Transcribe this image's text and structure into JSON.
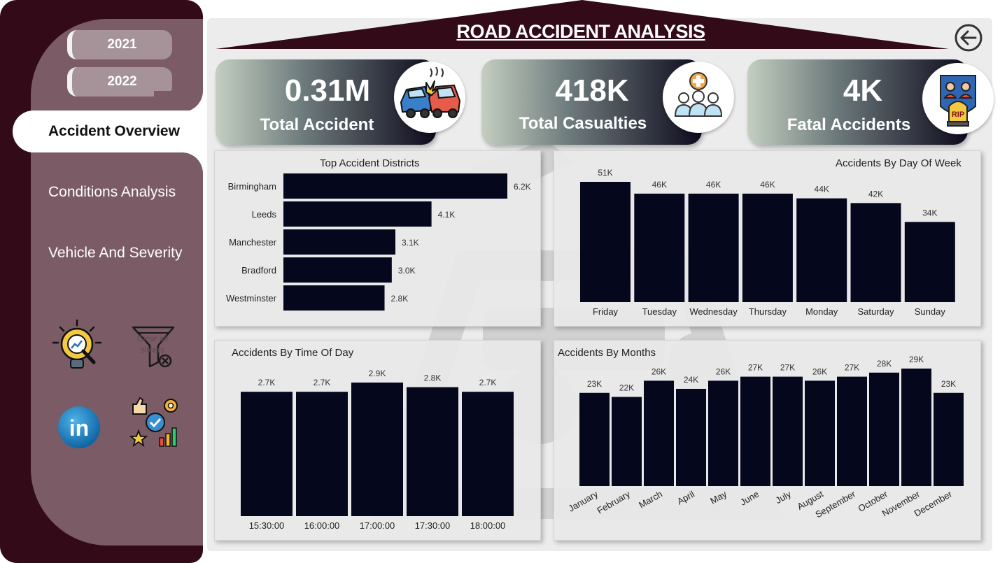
{
  "title": "ROAD ACCIDENT ANALYSIS",
  "sidebar": {
    "years": [
      "2021",
      "2022"
    ],
    "nav": {
      "active": "Accident Overview",
      "items": [
        "Conditions Analysis",
        "Vehicle And Severity"
      ]
    },
    "icons": {
      "insight": "idea-chart-icon",
      "clear": "filter-clear-icon",
      "clear_text": "Clear all slicers",
      "linkedin": "linkedin-icon",
      "performance": "performance-icon"
    }
  },
  "back_icon": "back-arrow-icon",
  "kpis": [
    {
      "value": "0.31M",
      "label": "Total Accident",
      "icon": "car-crash-icon"
    },
    {
      "value": "418K",
      "label": "Total Casualties",
      "icon": "people-medical-icon"
    },
    {
      "value": "4K",
      "label": "Fatal Accidents",
      "icon": "rip-tombstone-icon"
    }
  ],
  "colors": {
    "sidebar_dark": "#330b18",
    "sidebar_mid": "#7b5b66",
    "bar": "#05071d"
  },
  "chart_data": [
    {
      "id": "districts",
      "type": "bar",
      "orientation": "horizontal",
      "title": "Top Accident Districts",
      "categories": [
        "Birmingham",
        "Leeds",
        "Manchester",
        "Bradford",
        "Westminster"
      ],
      "values": [
        6200,
        4100,
        3100,
        3000,
        2800
      ],
      "labels": [
        "6.2K",
        "4.1K",
        "3.1K",
        "3.0K",
        "2.8K"
      ]
    },
    {
      "id": "dayofweek",
      "type": "bar",
      "title": "Accidents By Day Of Week",
      "categories": [
        "Friday",
        "Tuesday",
        "Wednesday",
        "Thursday",
        "Monday",
        "Saturday",
        "Sunday"
      ],
      "values": [
        51000,
        46000,
        46000,
        46000,
        44000,
        42000,
        34000
      ],
      "labels": [
        "51K",
        "46K",
        "46K",
        "46K",
        "44K",
        "42K",
        "34K"
      ]
    },
    {
      "id": "timeofday",
      "type": "bar",
      "title": "Accidents By Time Of Day",
      "categories": [
        "15:30:00",
        "16:00:00",
        "17:00:00",
        "17:30:00",
        "18:00:00"
      ],
      "values": [
        2700,
        2700,
        2900,
        2800,
        2700
      ],
      "labels": [
        "2.7K",
        "2.7K",
        "2.9K",
        "2.8K",
        "2.7K"
      ]
    },
    {
      "id": "months",
      "type": "bar",
      "title": "Accidents By Months",
      "categories": [
        "January",
        "February",
        "March",
        "April",
        "May",
        "June",
        "July",
        "August",
        "September",
        "October",
        "November",
        "December"
      ],
      "values": [
        23000,
        22000,
        26000,
        24000,
        26000,
        27000,
        27000,
        26000,
        27000,
        28000,
        29000,
        23000
      ],
      "labels": [
        "23K",
        "22K",
        "26K",
        "24K",
        "26K",
        "27K",
        "27K",
        "26K",
        "27K",
        "28K",
        "29K",
        "23K"
      ]
    }
  ]
}
